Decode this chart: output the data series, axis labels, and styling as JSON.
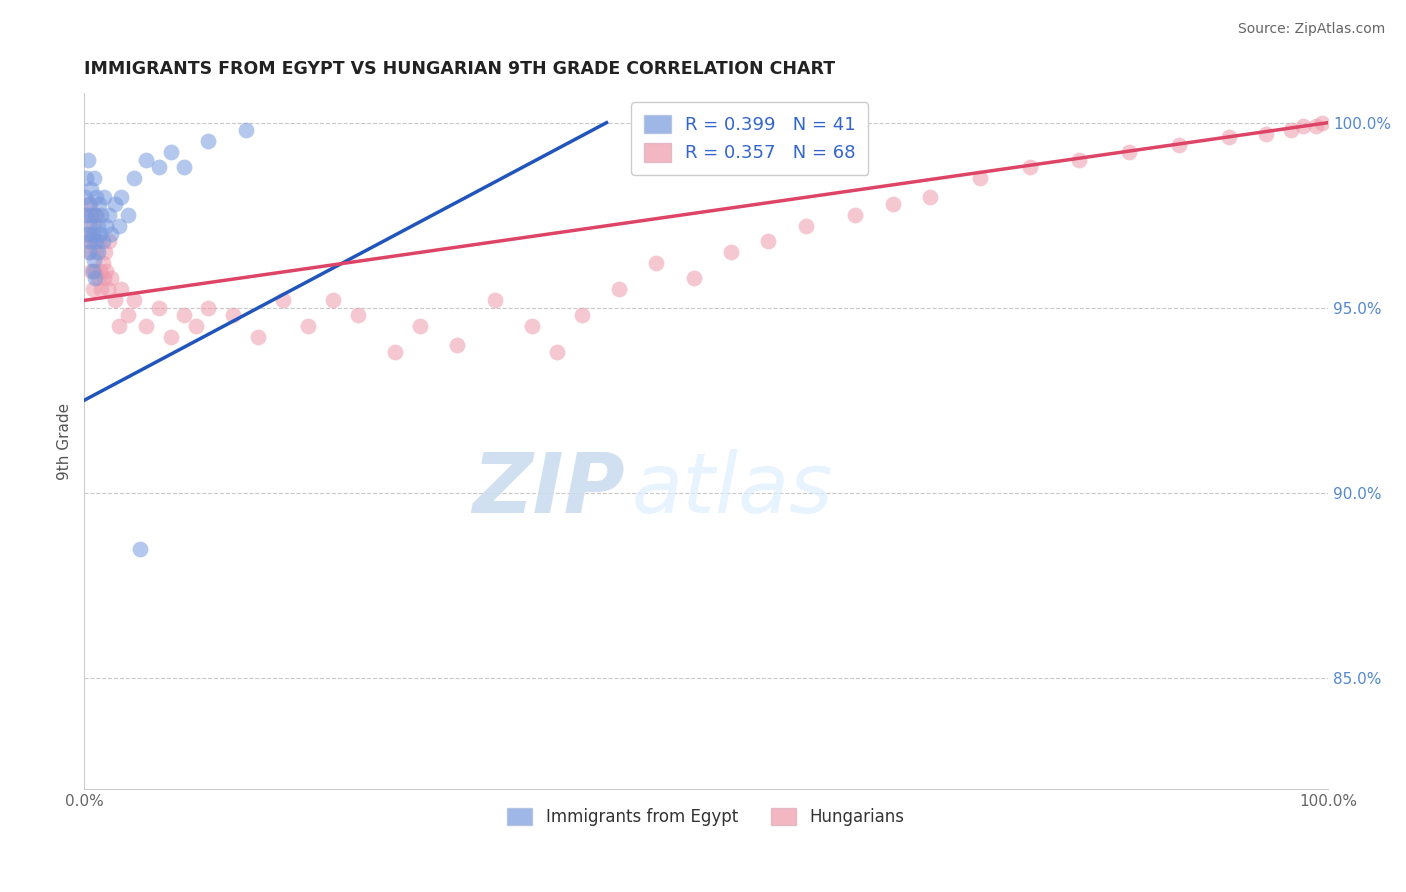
{
  "title": "IMMIGRANTS FROM EGYPT VS HUNGARIAN 9TH GRADE CORRELATION CHART",
  "source": "Source: ZipAtlas.com",
  "ylabel": "9th Grade",
  "xlim": [
    0.0,
    1.0
  ],
  "ylim": [
    0.82,
    1.008
  ],
  "blue_R": 0.399,
  "blue_N": 41,
  "pink_R": 0.357,
  "pink_N": 68,
  "blue_color": "#7799dd",
  "pink_color": "#ee99aa",
  "blue_line_color": "#2255bb",
  "pink_line_color": "#dd4466",
  "watermark_zip": "ZIP",
  "watermark_atlas": "atlas",
  "background_color": "#ffffff",
  "grid_color": "#bbbbbb",
  "blue_x": [
    0.001,
    0.002,
    0.002,
    0.003,
    0.003,
    0.004,
    0.004,
    0.005,
    0.005,
    0.006,
    0.006,
    0.007,
    0.007,
    0.008,
    0.008,
    0.009,
    0.009,
    0.01,
    0.01,
    0.011,
    0.011,
    0.012,
    0.013,
    0.014,
    0.015,
    0.016,
    0.018,
    0.02,
    0.022,
    0.025,
    0.028,
    0.03,
    0.035,
    0.04,
    0.05,
    0.06,
    0.07,
    0.08,
    0.1,
    0.13,
    0.045
  ],
  "blue_y": [
    0.98,
    0.975,
    0.985,
    0.97,
    0.99,
    0.965,
    0.978,
    0.972,
    0.968,
    0.982,
    0.975,
    0.96,
    0.97,
    0.985,
    0.963,
    0.975,
    0.958,
    0.968,
    0.98,
    0.972,
    0.965,
    0.978,
    0.97,
    0.975,
    0.968,
    0.98,
    0.972,
    0.975,
    0.97,
    0.978,
    0.972,
    0.98,
    0.975,
    0.985,
    0.99,
    0.988,
    0.992,
    0.988,
    0.995,
    0.998,
    0.885
  ],
  "pink_x": [
    0.002,
    0.003,
    0.004,
    0.005,
    0.005,
    0.006,
    0.007,
    0.007,
    0.008,
    0.008,
    0.009,
    0.01,
    0.01,
    0.011,
    0.012,
    0.013,
    0.014,
    0.015,
    0.016,
    0.017,
    0.018,
    0.019,
    0.02,
    0.022,
    0.025,
    0.028,
    0.03,
    0.035,
    0.04,
    0.05,
    0.06,
    0.07,
    0.08,
    0.09,
    0.1,
    0.12,
    0.14,
    0.16,
    0.18,
    0.2,
    0.22,
    0.25,
    0.27,
    0.3,
    0.33,
    0.36,
    0.38,
    0.4,
    0.43,
    0.46,
    0.49,
    0.52,
    0.55,
    0.58,
    0.62,
    0.65,
    0.68,
    0.72,
    0.76,
    0.8,
    0.84,
    0.88,
    0.92,
    0.95,
    0.97,
    0.98,
    0.99,
    0.995
  ],
  "pink_y": [
    0.975,
    0.97,
    0.968,
    0.965,
    0.978,
    0.96,
    0.972,
    0.955,
    0.968,
    0.975,
    0.96,
    0.965,
    0.975,
    0.958,
    0.968,
    0.96,
    0.955,
    0.962,
    0.958,
    0.965,
    0.96,
    0.955,
    0.968,
    0.958,
    0.952,
    0.945,
    0.955,
    0.948,
    0.952,
    0.945,
    0.95,
    0.942,
    0.948,
    0.945,
    0.95,
    0.948,
    0.942,
    0.952,
    0.945,
    0.952,
    0.948,
    0.938,
    0.945,
    0.94,
    0.952,
    0.945,
    0.938,
    0.948,
    0.955,
    0.962,
    0.958,
    0.965,
    0.968,
    0.972,
    0.975,
    0.978,
    0.98,
    0.985,
    0.988,
    0.99,
    0.992,
    0.994,
    0.996,
    0.997,
    0.998,
    0.999,
    0.999,
    1.0
  ],
  "blue_line_x": [
    0.0,
    0.42
  ],
  "blue_line_y_start": 0.925,
  "blue_line_y_end": 1.0,
  "pink_line_x": [
    0.0,
    1.0
  ],
  "pink_line_y_start": 0.952,
  "pink_line_y_end": 1.0
}
